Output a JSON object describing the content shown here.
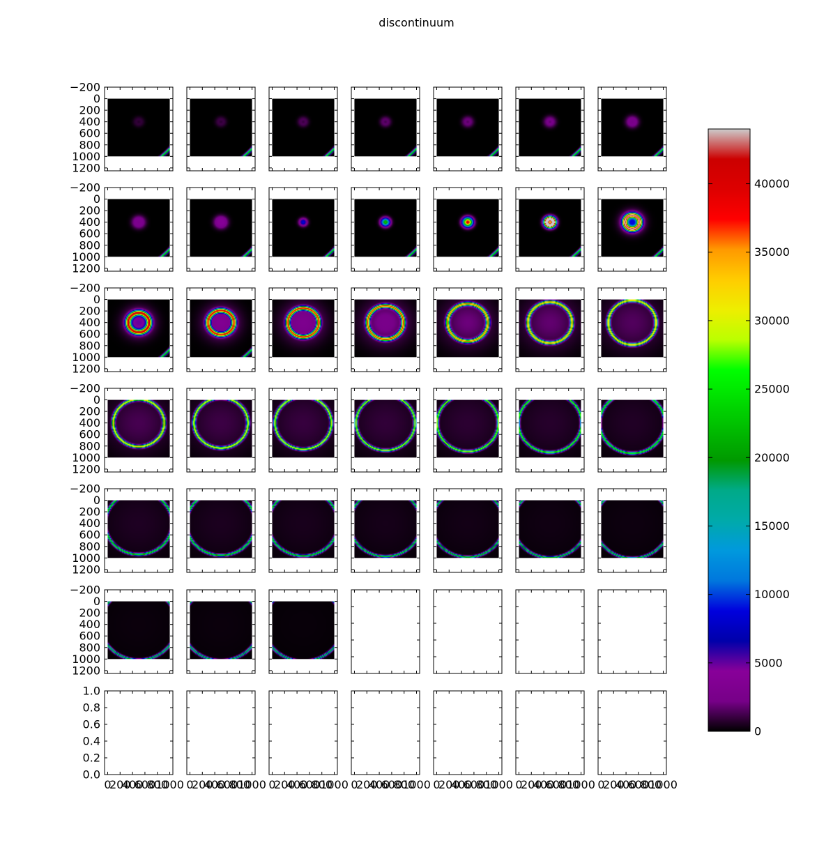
{
  "chart_data": {
    "type": "heatmap",
    "title": "discontinuum",
    "layout": {
      "rows": 7,
      "cols": 7
    },
    "image_extent": {
      "x": [
        0,
        1000
      ],
      "y": [
        1000,
        0
      ]
    },
    "image_axes": {
      "ylim": [
        1250,
        -200
      ],
      "yticks": [
        -200,
        0,
        200,
        400,
        600,
        800,
        1000,
        1200
      ],
      "yticklabels": [
        "−200",
        "0",
        "200",
        "400",
        "600",
        "800",
        "1000",
        "1200"
      ]
    },
    "empty_axes": {
      "ylim": [
        0,
        1
      ],
      "yticks": [
        0.0,
        0.2,
        0.4,
        0.6,
        0.8,
        1.0
      ],
      "yticklabels": [
        "0.0",
        "0.2",
        "0.4",
        "0.6",
        "0.8",
        "1.0"
      ]
    },
    "x_axis": {
      "xlim": [
        -50,
        1050
      ],
      "xticks": [
        0,
        200,
        400,
        600,
        800,
        1000
      ],
      "xticklabels": [
        "0",
        "200",
        "400",
        "600",
        "800",
        "1000"
      ]
    },
    "colorbar": {
      "vmin": 0,
      "vmax": 44000,
      "ticks": [
        0,
        5000,
        10000,
        15000,
        20000,
        25000,
        30000,
        35000,
        40000
      ],
      "ticklabels": [
        "0",
        "5000",
        "10000",
        "15000",
        "20000",
        "25000",
        "30000",
        "35000",
        "40000"
      ],
      "colormap": "nipy_spectral"
    },
    "panels": [
      {
        "r": 40,
        "w": 55,
        "peak": 900,
        "core": 0,
        "edge": true
      },
      {
        "r": 40,
        "w": 55,
        "peak": 1100,
        "core": 0,
        "edge": true
      },
      {
        "r": 40,
        "w": 55,
        "peak": 1400,
        "core": 0,
        "edge": true
      },
      {
        "r": 40,
        "w": 55,
        "peak": 1700,
        "core": 0,
        "edge": true
      },
      {
        "r": 40,
        "w": 60,
        "peak": 2000,
        "core": 0,
        "edge": true
      },
      {
        "r": 40,
        "w": 65,
        "peak": 2300,
        "core": 0,
        "edge": true
      },
      {
        "r": 40,
        "w": 70,
        "peak": 2700,
        "core": 0,
        "edge": true
      },
      {
        "r": 40,
        "w": 75,
        "peak": 3100,
        "core": 0,
        "edge": true
      },
      {
        "r": 30,
        "w": 80,
        "peak": 4300,
        "core": 0,
        "edge": true
      },
      {
        "r": 0,
        "w": 60,
        "peak": 9000,
        "core": 0,
        "edge": true
      },
      {
        "r": 0,
        "w": 65,
        "peak": 23000,
        "core": 0,
        "edge": true
      },
      {
        "r": 0,
        "w": 70,
        "peak": 42000,
        "core": 0,
        "edge": true
      },
      {
        "r": 60,
        "w": 40,
        "peak": 41000,
        "core": 25000,
        "edge": true
      },
      {
        "r": 120,
        "w": 40,
        "peak": 40000,
        "core": 9000,
        "edge": true
      },
      {
        "r": 170,
        "w": 40,
        "peak": 39000,
        "core": 5000,
        "edge": true
      },
      {
        "r": 210,
        "w": 35,
        "peak": 38000,
        "core": 3500,
        "edge": true
      },
      {
        "r": 250,
        "w": 32,
        "peak": 37000,
        "core": 3000,
        "edge": false
      },
      {
        "r": 290,
        "w": 30,
        "peak": 36000,
        "core": 2500,
        "edge": false
      },
      {
        "r": 325,
        "w": 28,
        "peak": 35000,
        "core": 2000,
        "edge": false
      },
      {
        "r": 355,
        "w": 26,
        "peak": 34000,
        "core": 1800,
        "edge": false
      },
      {
        "r": 385,
        "w": 25,
        "peak": 33000,
        "core": 1500,
        "edge": false
      },
      {
        "r": 410,
        "w": 24,
        "peak": 32000,
        "core": 1300,
        "edge": false
      },
      {
        "r": 435,
        "w": 23,
        "peak": 31000,
        "core": 1100,
        "edge": false
      },
      {
        "r": 455,
        "w": 22,
        "peak": 30000,
        "core": 1000,
        "edge": false
      },
      {
        "r": 475,
        "w": 21,
        "peak": 29000,
        "core": 900,
        "edge": false
      },
      {
        "r": 495,
        "w": 21,
        "peak": 28000,
        "core": 800,
        "edge": false
      },
      {
        "r": 510,
        "w": 20,
        "peak": 27000,
        "core": 700,
        "edge": false
      },
      {
        "r": 525,
        "w": 20,
        "peak": 26000,
        "core": 600,
        "edge": false
      },
      {
        "r": 540,
        "w": 19,
        "peak": 25000,
        "core": 550,
        "edge": false
      },
      {
        "r": 555,
        "w": 19,
        "peak": 24500,
        "core": 500,
        "edge": false
      },
      {
        "r": 565,
        "w": 19,
        "peak": 24000,
        "core": 450,
        "edge": false
      },
      {
        "r": 575,
        "w": 18,
        "peak": 23500,
        "core": 400,
        "edge": false
      },
      {
        "r": 585,
        "w": 18,
        "peak": 23000,
        "core": 350,
        "edge": false
      },
      {
        "r": 595,
        "w": 18,
        "peak": 22500,
        "core": 300,
        "edge": false
      },
      {
        "r": 605,
        "w": 18,
        "peak": 22000,
        "core": 250,
        "edge": false
      },
      {
        "r": 615,
        "w": 18,
        "peak": 21500,
        "core": 200,
        "edge": false
      },
      {
        "r": 625,
        "w": 18,
        "peak": 21000,
        "core": 200,
        "edge": false
      },
      {
        "r": 635,
        "w": 18,
        "peak": 20500,
        "core": 150,
        "edge": false
      }
    ]
  }
}
